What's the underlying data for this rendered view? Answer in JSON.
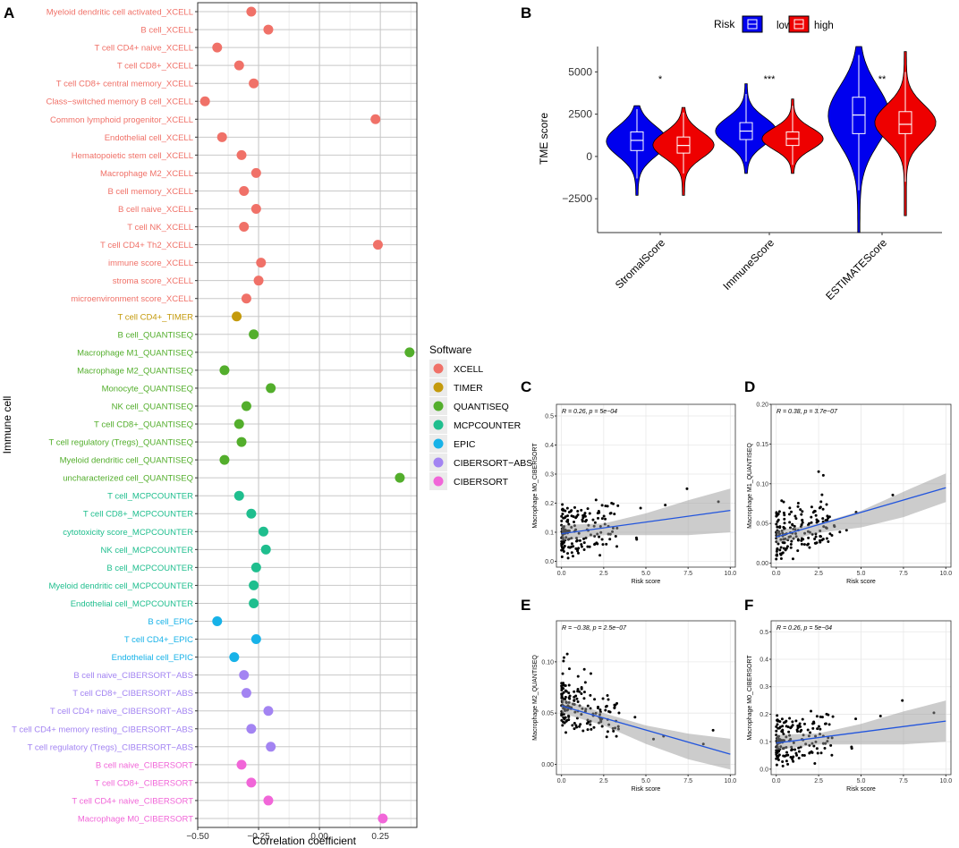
{
  "panel_labels": {
    "A": "A",
    "B": "B",
    "C": "C",
    "D": "D",
    "E": "E",
    "F": "F"
  },
  "legend_software": {
    "title": "Software",
    "items": [
      {
        "label": "XCELL",
        "color": "#F07168"
      },
      {
        "label": "TIMER",
        "color": "#C49A0C"
      },
      {
        "label": "QUANTISEQ",
        "color": "#53AE2C"
      },
      {
        "label": "MCPCOUNTER",
        "color": "#1FBE8E"
      },
      {
        "label": "EPIC",
        "color": "#17B2E8"
      },
      {
        "label": "CIBERSORT−ABS",
        "color": "#A384F2"
      },
      {
        "label": "CIBERSORT",
        "color": "#F166D8"
      }
    ]
  },
  "legend_risk": {
    "title": "Risk",
    "items": [
      {
        "label": "low",
        "color": "#0000EE"
      },
      {
        "label": "high",
        "color": "#EE0000"
      }
    ]
  },
  "chart_data": [
    {
      "panel": "A",
      "type": "scatter",
      "title": "",
      "xlabel": "Correlation coefficient",
      "ylabel": "Immune cell",
      "xlim": [
        -0.5,
        0.4
      ],
      "xticks": [
        -0.5,
        -0.25,
        0,
        0.25
      ],
      "xtick_labels": [
        "−0.50",
        "−0.25",
        "0.00",
        "0.25"
      ],
      "points": [
        {
          "cell": "Myeloid dendritic cell activated_XCELL",
          "software": "XCELL",
          "value": -0.28
        },
        {
          "cell": "B cell_XCELL",
          "software": "XCELL",
          "value": -0.21
        },
        {
          "cell": "T cell CD4+ naive_XCELL",
          "software": "XCELL",
          "value": -0.42
        },
        {
          "cell": "T cell CD8+_XCELL",
          "software": "XCELL",
          "value": -0.33
        },
        {
          "cell": "T cell CD8+ central memory_XCELL",
          "software": "XCELL",
          "value": -0.27
        },
        {
          "cell": "Class−switched memory B cell_XCELL",
          "software": "XCELL",
          "value": -0.47
        },
        {
          "cell": "Common lymphoid progenitor_XCELL",
          "software": "XCELL",
          "value": 0.23
        },
        {
          "cell": "Endothelial cell_XCELL",
          "software": "XCELL",
          "value": -0.4
        },
        {
          "cell": "Hematopoietic stem cell_XCELL",
          "software": "XCELL",
          "value": -0.32
        },
        {
          "cell": "Macrophage M2_XCELL",
          "software": "XCELL",
          "value": -0.26
        },
        {
          "cell": "B cell memory_XCELL",
          "software": "XCELL",
          "value": -0.31
        },
        {
          "cell": "B cell naive_XCELL",
          "software": "XCELL",
          "value": -0.26
        },
        {
          "cell": "T cell NK_XCELL",
          "software": "XCELL",
          "value": -0.31
        },
        {
          "cell": "T cell CD4+ Th2_XCELL",
          "software": "XCELL",
          "value": 0.24
        },
        {
          "cell": "immune score_XCELL",
          "software": "XCELL",
          "value": -0.24
        },
        {
          "cell": "stroma score_XCELL",
          "software": "XCELL",
          "value": -0.25
        },
        {
          "cell": "microenvironment score_XCELL",
          "software": "XCELL",
          "value": -0.3
        },
        {
          "cell": "T cell CD4+_TIMER",
          "software": "TIMER",
          "value": -0.34
        },
        {
          "cell": "B cell_QUANTISEQ",
          "software": "QUANTISEQ",
          "value": -0.27
        },
        {
          "cell": "Macrophage M1_QUANTISEQ",
          "software": "QUANTISEQ",
          "value": 0.37
        },
        {
          "cell": "Macrophage M2_QUANTISEQ",
          "software": "QUANTISEQ",
          "value": -0.39
        },
        {
          "cell": "Monocyte_QUANTISEQ",
          "software": "QUANTISEQ",
          "value": -0.2
        },
        {
          "cell": "NK cell_QUANTISEQ",
          "software": "QUANTISEQ",
          "value": -0.3
        },
        {
          "cell": "T cell CD8+_QUANTISEQ",
          "software": "QUANTISEQ",
          "value": -0.33
        },
        {
          "cell": "T cell regulatory (Tregs)_QUANTISEQ",
          "software": "QUANTISEQ",
          "value": -0.32
        },
        {
          "cell": "Myeloid dendritic cell_QUANTISEQ",
          "software": "QUANTISEQ",
          "value": -0.39
        },
        {
          "cell": "uncharacterized cell_QUANTISEQ",
          "software": "QUANTISEQ",
          "value": 0.33
        },
        {
          "cell": "T cell_MCPCOUNTER",
          "software": "MCPCOUNTER",
          "value": -0.33
        },
        {
          "cell": "T cell CD8+_MCPCOUNTER",
          "software": "MCPCOUNTER",
          "value": -0.28
        },
        {
          "cell": "cytotoxicity score_MCPCOUNTER",
          "software": "MCPCOUNTER",
          "value": -0.23
        },
        {
          "cell": "NK cell_MCPCOUNTER",
          "software": "MCPCOUNTER",
          "value": -0.22
        },
        {
          "cell": "B cell_MCPCOUNTER",
          "software": "MCPCOUNTER",
          "value": -0.26
        },
        {
          "cell": "Myeloid dendritic cell_MCPCOUNTER",
          "software": "MCPCOUNTER",
          "value": -0.27
        },
        {
          "cell": "Endothelial cell_MCPCOUNTER",
          "software": "MCPCOUNTER",
          "value": -0.27
        },
        {
          "cell": "B cell_EPIC",
          "software": "EPIC",
          "value": -0.42
        },
        {
          "cell": "T cell CD4+_EPIC",
          "software": "EPIC",
          "value": -0.26
        },
        {
          "cell": "Endothelial cell_EPIC",
          "software": "EPIC",
          "value": -0.35
        },
        {
          "cell": "B cell naive_CIBERSORT−ABS",
          "software": "CIBERSORT−ABS",
          "value": -0.31
        },
        {
          "cell": "T cell CD8+_CIBERSORT−ABS",
          "software": "CIBERSORT−ABS",
          "value": -0.3
        },
        {
          "cell": "T cell CD4+ naive_CIBERSORT−ABS",
          "software": "CIBERSORT−ABS",
          "value": -0.21
        },
        {
          "cell": "T cell CD4+ memory resting_CIBERSORT−ABS",
          "software": "CIBERSORT−ABS",
          "value": -0.28
        },
        {
          "cell": "T cell regulatory (Tregs)_CIBERSORT−ABS",
          "software": "CIBERSORT−ABS",
          "value": -0.2
        },
        {
          "cell": "B cell naive_CIBERSORT",
          "software": "CIBERSORT",
          "value": -0.32
        },
        {
          "cell": "T cell CD8+_CIBERSORT",
          "software": "CIBERSORT",
          "value": -0.28
        },
        {
          "cell": "T cell CD4+ naive_CIBERSORT",
          "software": "CIBERSORT",
          "value": -0.21
        },
        {
          "cell": "Macrophage M0_CIBERSORT",
          "software": "CIBERSORT",
          "value": 0.26
        }
      ]
    },
    {
      "panel": "B",
      "type": "violin",
      "ylabel": "TME score",
      "xlabel": "",
      "ylim": [
        -4500,
        6500
      ],
      "yticks": [
        -2500,
        0,
        2500,
        5000
      ],
      "ytick_labels": [
        "−2500",
        "0",
        "2500",
        "5000"
      ],
      "groups": [
        {
          "category": "StromalScore",
          "significance": "*",
          "low": {
            "q1": 350,
            "median": 950,
            "q3": 1450,
            "min": -1300,
            "max": 2800,
            "tail_min": -2300,
            "tail_max": 3000
          },
          "high": {
            "q1": 200,
            "median": 650,
            "q3": 1150,
            "min": -1000,
            "max": 2600,
            "tail_min": -2300,
            "tail_max": 2900
          }
        },
        {
          "category": "ImmuneScore",
          "significance": "***",
          "low": {
            "q1": 1000,
            "median": 1500,
            "q3": 2000,
            "min": -300,
            "max": 3700,
            "tail_min": -1000,
            "tail_max": 4300
          },
          "high": {
            "q1": 650,
            "median": 1050,
            "q3": 1450,
            "min": -500,
            "max": 3000,
            "tail_min": -1000,
            "tail_max": 3400
          }
        },
        {
          "category": "ESTIMATEScore",
          "significance": "**",
          "low": {
            "q1": 1350,
            "median": 2450,
            "q3": 3500,
            "min": -2000,
            "max": 6000,
            "tail_min": -4500,
            "tail_max": 6500
          },
          "high": {
            "q1": 1350,
            "median": 1900,
            "q3": 2650,
            "min": -1500,
            "max": 5000,
            "tail_min": -3500,
            "tail_max": 6200
          }
        }
      ]
    },
    {
      "panel": "C",
      "type": "scatter",
      "xlabel": "Risk score",
      "ylabel": "Macrophage M0_CIBERSORT",
      "annotation": "R = 0.26, p = 5e−04",
      "xlim": [
        -0.3,
        10.3
      ],
      "ylim": [
        -0.02,
        0.54
      ],
      "xticks": [
        0,
        2.5,
        5,
        7.5,
        10
      ],
      "xtick_labels": [
        "0.0",
        "2.5",
        "5.0",
        "7.5",
        "10.0"
      ],
      "yticks": [
        0,
        0.1,
        0.2,
        0.3,
        0.4,
        0.5
      ],
      "ytick_labels": [
        "0.0",
        "0.1",
        "0.2",
        "0.3",
        "0.4",
        "0.5"
      ],
      "fit": {
        "x": [
          0,
          10
        ],
        "y": [
          0.095,
          0.175
        ]
      },
      "ci": {
        "x": [
          0,
          2.5,
          5,
          7.5,
          10
        ],
        "upper": [
          0.125,
          0.13,
          0.165,
          0.21,
          0.25
        ],
        "lower": [
          0.07,
          0.09,
          0.09,
          0.09,
          0.1
        ]
      }
    },
    {
      "panel": "D",
      "type": "scatter",
      "xlabel": "Risk score",
      "ylabel": "Macrophage M1_QUANTISEQ",
      "annotation": "R = 0.38, p = 3.7e−07",
      "xlim": [
        -0.3,
        10.3
      ],
      "ylim": [
        -0.005,
        0.2
      ],
      "xticks": [
        0,
        2.5,
        5,
        7.5,
        10
      ],
      "xtick_labels": [
        "0.0",
        "2.5",
        "5.0",
        "7.5",
        "10.0"
      ],
      "yticks": [
        0,
        0.05,
        0.1,
        0.15,
        0.2
      ],
      "ytick_labels": [
        "0.00",
        "0.05",
        "0.10",
        "0.15",
        "0.20"
      ],
      "fit": {
        "x": [
          0,
          10
        ],
        "y": [
          0.033,
          0.095
        ]
      },
      "ci": {
        "x": [
          0,
          2.5,
          5,
          7.5,
          10
        ],
        "upper": [
          0.041,
          0.05,
          0.066,
          0.09,
          0.113
        ],
        "lower": [
          0.025,
          0.038,
          0.045,
          0.058,
          0.077
        ]
      }
    },
    {
      "panel": "E",
      "type": "scatter",
      "xlabel": "Risk score",
      "ylabel": "Macrophage M2_QUANTISEQ",
      "annotation": "R = −0.38, p = 2.5e−07",
      "xlim": [
        -0.3,
        10.3
      ],
      "ylim": [
        -0.01,
        0.14
      ],
      "xticks": [
        0,
        2.5,
        5,
        7.5,
        10
      ],
      "xtick_labels": [
        "0.0",
        "2.5",
        "5.0",
        "7.5",
        "10.0"
      ],
      "yticks": [
        0,
        0.05,
        0.1
      ],
      "ytick_labels": [
        "0.00",
        "0.05",
        "0.10"
      ],
      "fit": {
        "x": [
          0,
          10
        ],
        "y": [
          0.057,
          0.01
        ]
      },
      "ci": {
        "x": [
          0,
          2.5,
          5,
          7.5,
          10
        ],
        "upper": [
          0.064,
          0.05,
          0.038,
          0.03,
          0.025
        ],
        "lower": [
          0.05,
          0.038,
          0.02,
          0.005,
          -0.005
        ]
      }
    },
    {
      "panel": "F",
      "type": "scatter",
      "xlabel": "Risk score",
      "ylabel": "Macrophage M0_CIBERSORT",
      "annotation": "R = 0.26, p = 5e−04",
      "xlim": [
        -0.3,
        10.3
      ],
      "ylim": [
        -0.02,
        0.54
      ],
      "xticks": [
        0,
        2.5,
        5,
        7.5,
        10
      ],
      "xtick_labels": [
        "0.0",
        "2.5",
        "5.0",
        "7.5",
        "10.0"
      ],
      "yticks": [
        0,
        0.1,
        0.2,
        0.3,
        0.4,
        0.5
      ],
      "ytick_labels": [
        "0.0",
        "0.1",
        "0.2",
        "0.3",
        "0.4",
        "0.5"
      ],
      "fit": {
        "x": [
          0,
          10
        ],
        "y": [
          0.095,
          0.175
        ]
      },
      "ci": {
        "x": [
          0,
          2.5,
          5,
          7.5,
          10
        ],
        "upper": [
          0.125,
          0.13,
          0.165,
          0.21,
          0.25
        ],
        "lower": [
          0.07,
          0.09,
          0.09,
          0.09,
          0.1
        ]
      }
    }
  ]
}
